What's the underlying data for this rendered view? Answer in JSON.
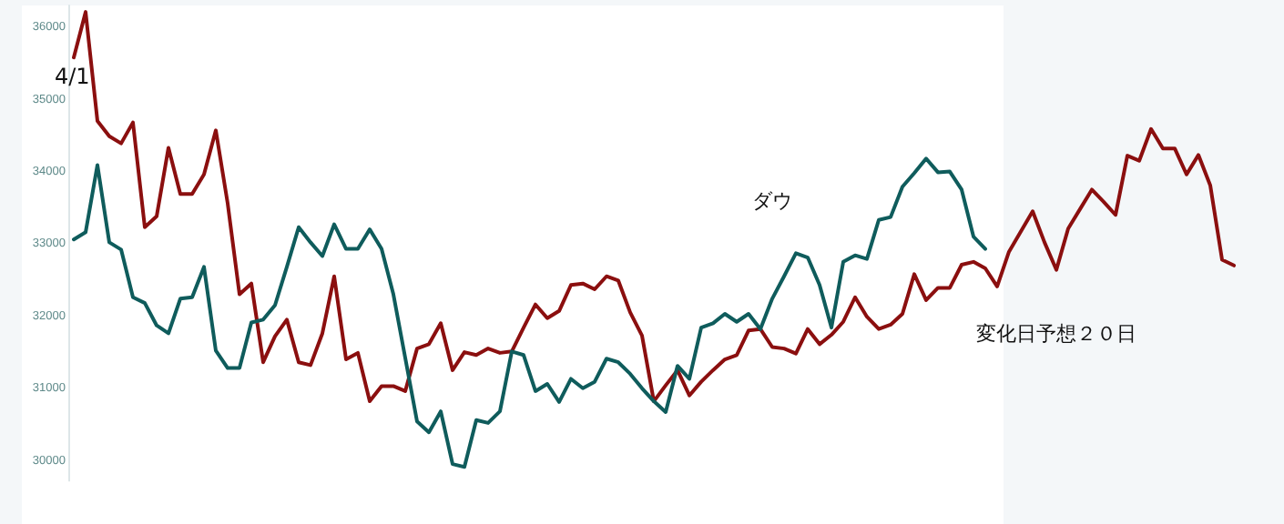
{
  "chart_data": {
    "type": "line",
    "categories": [
      null,
      null,
      null,
      null,
      null,
      null,
      null,
      null,
      null,
      null,
      null,
      null,
      null,
      null,
      null,
      null,
      null,
      null,
      null,
      null,
      null,
      null,
      null,
      null,
      null,
      null,
      null,
      null,
      null,
      null,
      null,
      null,
      null,
      null,
      null,
      null,
      null,
      null,
      null,
      null,
      null,
      null,
      null,
      null,
      null,
      null,
      null,
      null,
      null,
      null,
      null,
      null,
      null,
      null,
      null,
      null,
      null,
      null,
      null,
      null,
      null,
      null,
      null,
      null,
      null,
      null,
      null,
      null,
      null,
      null,
      null,
      null,
      null,
      null,
      null,
      null,
      null,
      null,
      null,
      null,
      null,
      null,
      null,
      null,
      null,
      null,
      null,
      null,
      null,
      null,
      null,
      null,
      null,
      null,
      null,
      null,
      null,
      null,
      null
    ],
    "series": [
      {
        "color": "#8b0f0f",
        "values": [
          35570,
          36200,
          34690,
          34480,
          34380,
          34670,
          33220,
          33370,
          34320,
          33680,
          33680,
          33950,
          34560,
          33550,
          32290,
          32440,
          31350,
          31710,
          31940,
          31350,
          31310,
          31750,
          32540,
          31390,
          31480,
          30810,
          31020,
          31020,
          30950,
          31540,
          31600,
          31890,
          31240,
          31490,
          31450,
          31540,
          31480,
          31500,
          31830,
          32150,
          31960,
          32060,
          32420,
          32440,
          32360,
          32540,
          32480,
          32040,
          31720,
          30810,
          31030,
          31240,
          30890,
          31080,
          31240,
          31390,
          31450,
          31790,
          31810,
          31560,
          31540,
          31470,
          31810,
          31600,
          31730,
          31910,
          32250,
          31980,
          31810,
          31870,
          32020,
          32570,
          32210,
          32380,
          32380,
          32700,
          32740,
          32650,
          32400,
          32880,
          33160,
          33440,
          33010,
          32630,
          33200,
          33470,
          33740,
          33570,
          33390,
          34210,
          34140,
          34580,
          34310,
          34310,
          33950,
          34220,
          33800,
          32770,
          32690
        ]
      },
      {
        "name": "ダウ",
        "color": "#0f5c5c",
        "values": [
          33050,
          33150,
          34080,
          33010,
          32910,
          32250,
          32170,
          31860,
          31750,
          32230,
          32250,
          32670,
          31510,
          31270,
          31270,
          31900,
          31940,
          32140,
          32670,
          33220,
          33010,
          32820,
          33260,
          32920,
          32920,
          33190,
          32920,
          32290,
          31410,
          30530,
          30380,
          30670,
          29940,
          29900,
          30550,
          30510,
          30670,
          31500,
          31450,
          30950,
          31050,
          30800,
          31120,
          30990,
          31080,
          31400,
          31350,
          31190,
          30990,
          30810,
          30660,
          31300,
          31120,
          31830,
          31890,
          32020,
          31910,
          32020,
          31810,
          32230,
          32540,
          32860,
          32800,
          32420,
          31830,
          32740,
          32830,
          32780,
          33320,
          33360,
          33780,
          33970,
          34170,
          33980,
          33990,
          33740,
          33090,
          32920,
          null,
          null,
          null,
          null,
          null,
          null,
          null,
          null,
          null,
          null,
          null,
          null,
          null,
          null,
          null,
          null,
          null,
          null,
          null,
          null,
          null
        ]
      }
    ],
    "ylim": [
      29700,
      36300
    ],
    "yticks": [
      30000,
      31000,
      32000,
      33000,
      34000,
      35000,
      36000
    ],
    "tick_labels": "y",
    "annotations": [
      "4/1",
      "変化日予想２０日"
    ]
  }
}
